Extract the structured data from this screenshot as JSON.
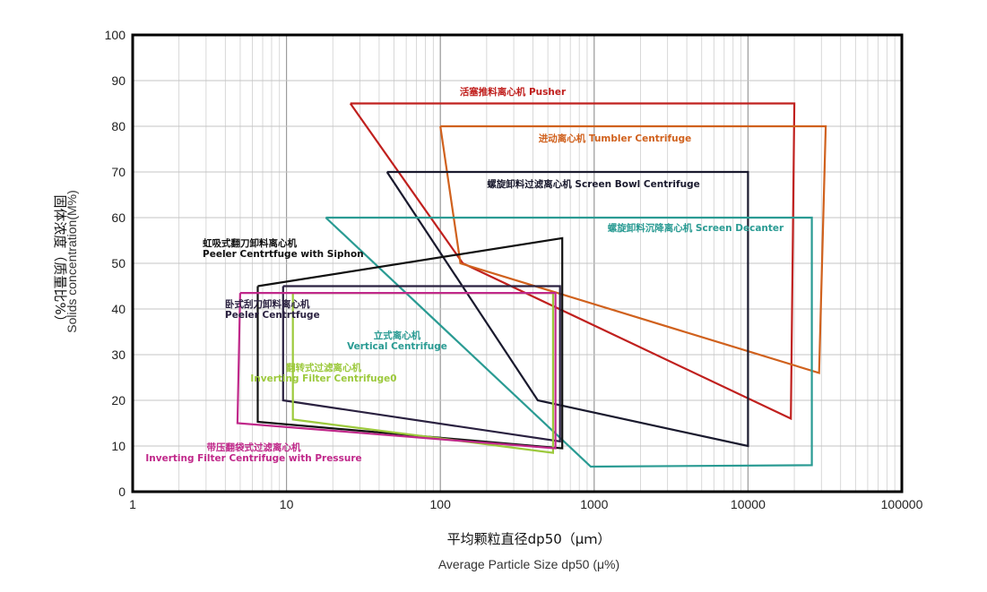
{
  "chart_data": {
    "type": "area",
    "x_scale": "log",
    "xlim": [
      1,
      100000
    ],
    "ylim": [
      0,
      100
    ],
    "grid": true,
    "x_ticks": [
      "1",
      "10",
      "100",
      "1000",
      "10000",
      "100000"
    ],
    "y_ticks": [
      "0",
      "10",
      "20",
      "30",
      "40",
      "50",
      "60",
      "70",
      "80",
      "90",
      "100"
    ],
    "xlabel_cn": "平均颗粒直径dp50（μｍ）",
    "xlabel_en": "Average Particle Size dp50 (μ%)",
    "ylabel_cn": "固体浓度（质量比%）",
    "ylabel_en": "Solids concentration(M%)",
    "series": [
      {
        "name": "活塞推料离心机 Pusher",
        "color": "#c0201e",
        "points": [
          [
            26,
            85
          ],
          [
            20000,
            85
          ],
          [
            19000,
            16
          ],
          [
            140,
            50
          ],
          [
            26,
            85
          ]
        ]
      },
      {
        "name": "进动离心机 Tumbler Centrifuge",
        "color": "#d0611d",
        "points": [
          [
            100,
            80
          ],
          [
            32000,
            80
          ],
          [
            29000,
            26
          ],
          [
            135,
            50
          ],
          [
            100,
            80
          ]
        ]
      },
      {
        "name": "螺旋卸料过滤离心机 Screen Bowl Centrifuge",
        "color": "#1a1a2e",
        "points": [
          [
            45,
            70
          ],
          [
            10000,
            70
          ],
          [
            10000,
            10
          ],
          [
            430,
            20
          ],
          [
            45,
            70
          ]
        ]
      },
      {
        "name": "螺旋卸料沉降离心机 Screen Decanter",
        "color": "#2a9b93",
        "points": [
          [
            18,
            60
          ],
          [
            26000,
            60
          ],
          [
            26000,
            5.8
          ],
          [
            950,
            5.5
          ],
          [
            18,
            60
          ]
        ]
      },
      {
        "name": "虹吸式翻刀卸料离心机",
        "name2": "Peeler Centrtfuge with Siphon",
        "color": "#111111",
        "points": [
          [
            6.5,
            45
          ],
          [
            620,
            55.5
          ],
          [
            620,
            9.5
          ],
          [
            6.5,
            15.3
          ],
          [
            6.5,
            45
          ]
        ]
      },
      {
        "name": "卧式刮刀卸料离心机",
        "name2": "Peeler Centrtfuge",
        "color": "#2a2140",
        "points": [
          [
            9.5,
            45
          ],
          [
            600,
            45
          ],
          [
            600,
            11
          ],
          [
            9.5,
            20
          ],
          [
            9.5,
            45
          ]
        ]
      },
      {
        "name": "立式离心机",
        "name2": "Vertical Centrifuge",
        "color": "#2a9b93",
        "points": []
      },
      {
        "name": "翻转式过滤离心机",
        "name2": "Inverting Filter Centrifuge0",
        "color": "#9cc93c",
        "points": [
          [
            11,
            43.5
          ],
          [
            540,
            43.5
          ],
          [
            540,
            8.5
          ],
          [
            11,
            15.8
          ],
          [
            11,
            43.5
          ]
        ]
      },
      {
        "name": "带压翻袋式过滤离心机",
        "name2": "Inverting Filter Centrifuge with Pressure",
        "color": "#c0288a",
        "points": [
          [
            5,
            43.5
          ],
          [
            560,
            43.5
          ],
          [
            560,
            9.5
          ],
          [
            4.8,
            15
          ],
          [
            5,
            43.5
          ]
        ]
      }
    ]
  }
}
